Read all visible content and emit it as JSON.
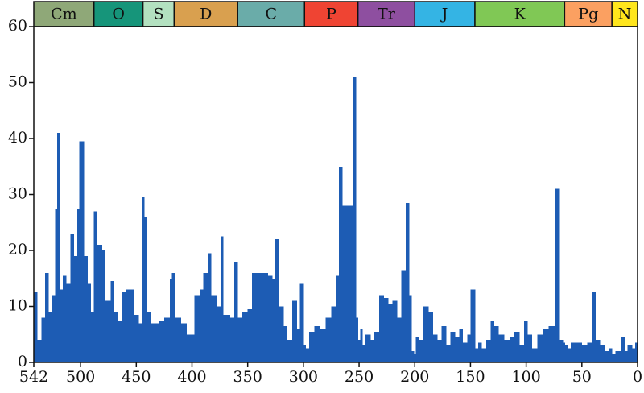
{
  "chart_data": {
    "type": "histogram",
    "color": "#1d5cb4",
    "xlim": [
      542,
      0
    ],
    "ylim": [
      0,
      60
    ],
    "xticks": [
      542,
      500,
      450,
      400,
      350,
      300,
      250,
      200,
      150,
      100,
      50,
      0
    ],
    "yticks": [
      0,
      10,
      20,
      30,
      40,
      50,
      60
    ],
    "bins": [
      542,
      539,
      535,
      532,
      529,
      526,
      523,
      521,
      519,
      516,
      513,
      509,
      506,
      503,
      501,
      497,
      494,
      491,
      488,
      486,
      481,
      478,
      473,
      470,
      467,
      463,
      459,
      452,
      448,
      445,
      443,
      441,
      437,
      430,
      425,
      420,
      418,
      415,
      410,
      405,
      398,
      393,
      390,
      386,
      383,
      378,
      374,
      372,
      366,
      362,
      359,
      355,
      350,
      346,
      340,
      332,
      328,
      326,
      322,
      318,
      315,
      310,
      306,
      303,
      300,
      298,
      295,
      290,
      285,
      280,
      275,
      271,
      268,
      265,
      261,
      259,
      255,
      253,
      251,
      249,
      247,
      245,
      240,
      237,
      232,
      228,
      224,
      220,
      216,
      212,
      208,
      205,
      203,
      201,
      199,
      196,
      193,
      188,
      184,
      180,
      176,
      172,
      168,
      164,
      160,
      157,
      153,
      150,
      146,
      143,
      140,
      136,
      132,
      129,
      125,
      120,
      115,
      111,
      106,
      102,
      99,
      95,
      90,
      85,
      80,
      74,
      70,
      67,
      65.5,
      63,
      60,
      55,
      50,
      45,
      41,
      38,
      34,
      30,
      26,
      23,
      20,
      15,
      12,
      9,
      5,
      2,
      0
    ],
    "counts": [
      12.5,
      4,
      8,
      16,
      9,
      12,
      27.5,
      41,
      13,
      15.5,
      14,
      23,
      19,
      27.5,
      39.5,
      19,
      14,
      9,
      27,
      21,
      20,
      11,
      14.5,
      9,
      7.5,
      12.5,
      13,
      8.5,
      7,
      29.5,
      26,
      9,
      7,
      7.5,
      8,
      15,
      16,
      8,
      7,
      5,
      12,
      13,
      16,
      19.5,
      12,
      10,
      22.5,
      8.5,
      8,
      18,
      8,
      9,
      9.5,
      16,
      16,
      15.5,
      15,
      22,
      10,
      6.5,
      4,
      11,
      6,
      14,
      3,
      2.5,
      5.5,
      6.5,
      6,
      8,
      10,
      15.5,
      35,
      28,
      28,
      28,
      51,
      8,
      4,
      6,
      3,
      5,
      4,
      5.5,
      12,
      11.5,
      10.5,
      11,
      8,
      16.5,
      28.5,
      12,
      2,
      1.5,
      4.5,
      4,
      10,
      9,
      5,
      4,
      6.5,
      3,
      5.5,
      4.5,
      6,
      3.5,
      5,
      13,
      2.5,
      3.5,
      2.5,
      4,
      7.5,
      6.5,
      5,
      4,
      4.5,
      5.5,
      3,
      7.5,
      5,
      2.5,
      5,
      6,
      6.5,
      31,
      4,
      3.5,
      3,
      2.5,
      3.5,
      3.5,
      3,
      3.5,
      12.5,
      4,
      3,
      2,
      2.5,
      1.5,
      2,
      4.5,
      2,
      3,
      2.5,
      3.5
    ],
    "periods": [
      {
        "label": "Cm",
        "start": 542,
        "end": 488,
        "color": "#8fa878"
      },
      {
        "label": "O",
        "start": 488,
        "end": 444,
        "color": "#16957a"
      },
      {
        "label": "S",
        "start": 444,
        "end": 416,
        "color": "#b3e1c0"
      },
      {
        "label": "D",
        "start": 416,
        "end": 359,
        "color": "#d9a04f"
      },
      {
        "label": "C",
        "start": 359,
        "end": 299,
        "color": "#6aaca9"
      },
      {
        "label": "P",
        "start": 299,
        "end": 251,
        "color": "#ef4433"
      },
      {
        "label": "Tr",
        "start": 251,
        "end": 200,
        "color": "#8e4fa0"
      },
      {
        "label": "J",
        "start": 200,
        "end": 146,
        "color": "#34b4e4"
      },
      {
        "label": "K",
        "start": 146,
        "end": 65.5,
        "color": "#80c855"
      },
      {
        "label": "Pg",
        "start": 65.5,
        "end": 23,
        "color": "#fba061"
      },
      {
        "label": "N",
        "start": 23,
        "end": 0,
        "color": "#ffe61c"
      }
    ]
  }
}
